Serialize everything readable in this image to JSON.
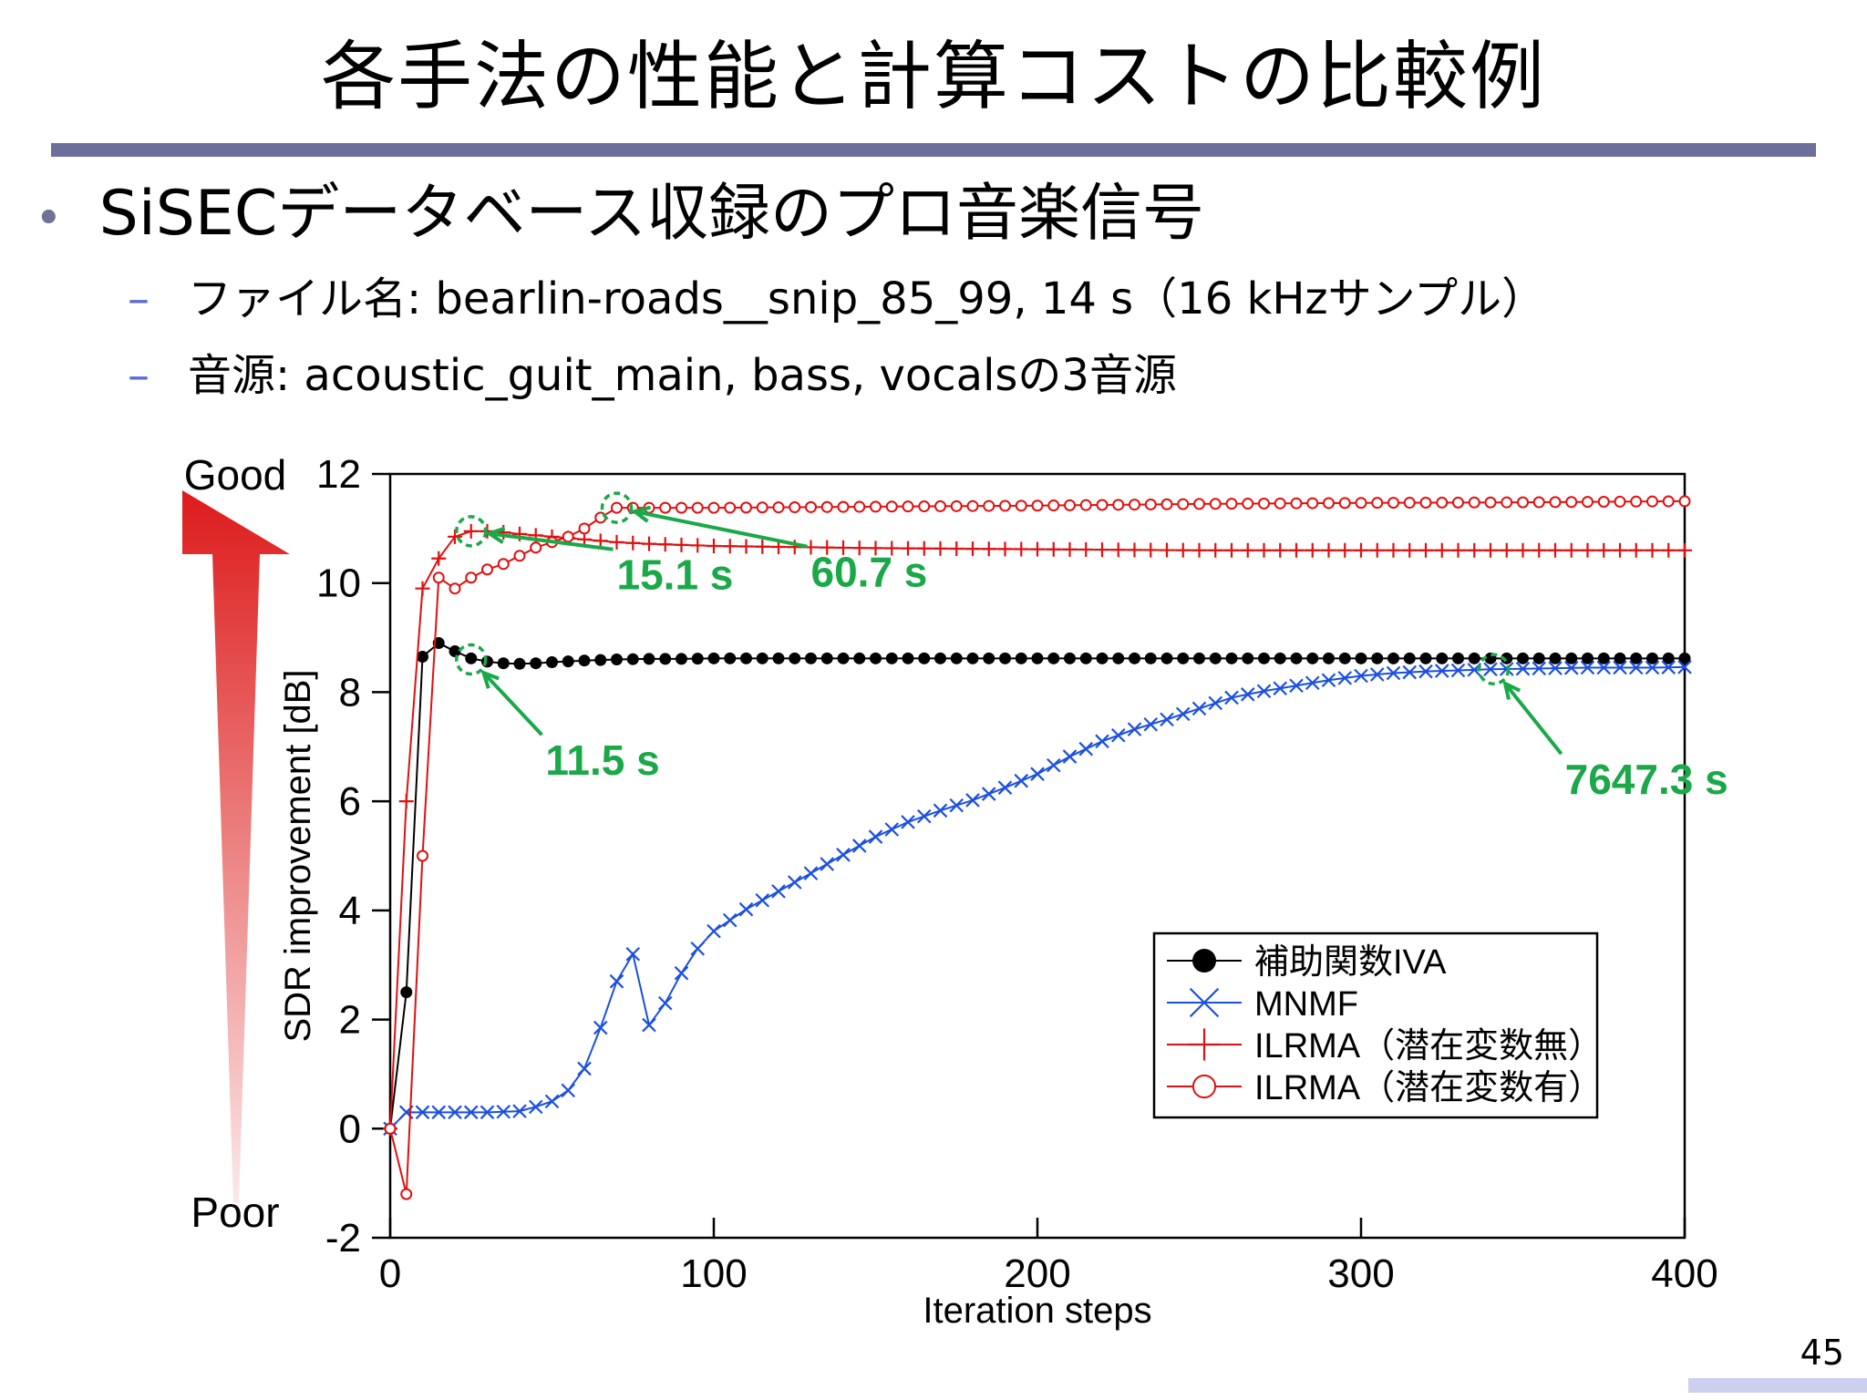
{
  "slide": {
    "title": "各手法の性能と計算コストの比較例",
    "bullet": "SiSECデータベース収録のプロ音楽信号",
    "sub1": "ファイル名: bearlin-roads__snip_85_99, 14 s（16 kHzサンプル）",
    "sub2": "音源: acoustic_guit_main, bass, vocalsの3音源",
    "page_number": "45"
  },
  "chart_data": {
    "type": "line",
    "xlabel": "Iteration steps",
    "ylabel": "SDR improvement [dB]",
    "xlim": [
      0,
      400
    ],
    "ylim": [
      -2,
      12
    ],
    "xticks": [
      "0",
      "100",
      "200",
      "300",
      "400"
    ],
    "yticks": [
      "-2",
      "0",
      "2",
      "4",
      "6",
      "8",
      "10",
      "12"
    ],
    "quality_arrow": {
      "top_label": "Good",
      "bottom_label": "Poor",
      "color": "#dd1b1b"
    },
    "legend_position": "lower-right",
    "series": [
      {
        "name": "補助関数IVA",
        "color": "#000000",
        "marker": "dot",
        "x": [
          0,
          5,
          10,
          15,
          20,
          25,
          30,
          35,
          40,
          45,
          50,
          60,
          70,
          80,
          90,
          100,
          150,
          200,
          250,
          300,
          350,
          400
        ],
        "y": [
          0,
          2.5,
          8.65,
          8.9,
          8.75,
          8.62,
          8.56,
          8.53,
          8.52,
          8.53,
          8.55,
          8.58,
          8.6,
          8.61,
          8.61,
          8.62,
          8.62,
          8.62,
          8.62,
          8.62,
          8.62,
          8.62
        ]
      },
      {
        "name": "MNMF",
        "color": "#1a4fe0",
        "marker": "x",
        "x": [
          0,
          5,
          10,
          20,
          30,
          40,
          45,
          50,
          55,
          60,
          65,
          70,
          75,
          80,
          85,
          90,
          95,
          100,
          110,
          120,
          130,
          140,
          150,
          160,
          170,
          180,
          190,
          200,
          210,
          220,
          230,
          240,
          250,
          260,
          270,
          280,
          290,
          300,
          310,
          320,
          330,
          340,
          350,
          360,
          370,
          380,
          390,
          400
        ],
        "y": [
          0,
          0.3,
          0.3,
          0.3,
          0.3,
          0.32,
          0.4,
          0.5,
          0.7,
          1.1,
          1.85,
          2.7,
          3.2,
          1.9,
          2.3,
          2.85,
          3.3,
          3.62,
          4.02,
          4.35,
          4.68,
          5.02,
          5.35,
          5.62,
          5.83,
          6.02,
          6.25,
          6.5,
          6.82,
          7.1,
          7.32,
          7.5,
          7.7,
          7.9,
          8.02,
          8.12,
          8.22,
          8.3,
          8.35,
          8.38,
          8.4,
          8.42,
          8.43,
          8.44,
          8.45,
          8.45,
          8.45,
          8.46
        ]
      },
      {
        "name": "ILRMA（潜在変数無）",
        "color": "#e01010",
        "marker": "plus",
        "x": [
          0,
          5,
          10,
          15,
          20,
          25,
          30,
          35,
          40,
          50,
          60,
          70,
          80,
          90,
          100,
          150,
          200,
          250,
          300,
          350,
          400
        ],
        "y": [
          0,
          6,
          9.9,
          10.45,
          10.85,
          10.95,
          10.95,
          10.93,
          10.9,
          10.85,
          10.8,
          10.75,
          10.72,
          10.7,
          10.68,
          10.64,
          10.62,
          10.6,
          10.6,
          10.6,
          10.6
        ]
      },
      {
        "name": "ILRMA（潜在変数有）",
        "color": "#e01010",
        "marker": "circle",
        "x": [
          0,
          5,
          10,
          15,
          20,
          25,
          30,
          35,
          40,
          45,
          50,
          55,
          60,
          65,
          70,
          75,
          80,
          90,
          100,
          150,
          200,
          250,
          300,
          350,
          400
        ],
        "y": [
          0,
          -1.2,
          5,
          10.1,
          9.9,
          10.1,
          10.25,
          10.35,
          10.5,
          10.65,
          10.75,
          10.85,
          11.0,
          11.2,
          11.38,
          11.38,
          11.38,
          11.38,
          11.38,
          11.4,
          11.42,
          11.45,
          11.47,
          11.48,
          11.5
        ]
      }
    ],
    "annotations": [
      {
        "text": "15.1 s",
        "point": [
          25,
          10.95
        ],
        "label_at": [
          70,
          9.95
        ],
        "color": "#1aa848"
      },
      {
        "text": "60.7 s",
        "point": [
          70,
          11.38
        ],
        "label_at": [
          130,
          10.0
        ],
        "color": "#1aa848"
      },
      {
        "text": "11.5 s",
        "point": [
          25,
          8.6
        ],
        "label_at": [
          48,
          6.55
        ],
        "color": "#1aa848"
      },
      {
        "text": "7647.3 s",
        "point": [
          341,
          8.42
        ],
        "label_at": [
          363,
          6.2
        ],
        "color": "#1aa848"
      }
    ]
  }
}
